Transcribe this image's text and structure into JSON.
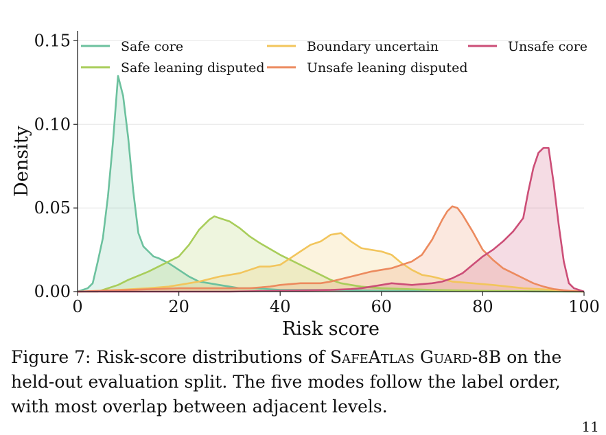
{
  "chart_data": {
    "type": "area",
    "xlabel": "Risk score",
    "ylabel": "Density",
    "xlim": [
      0,
      100
    ],
    "ylim": [
      0,
      0.16
    ],
    "xticks": [
      0,
      20,
      40,
      60,
      80,
      100
    ],
    "yticks": [
      0.0,
      0.05,
      0.1,
      0.15
    ],
    "xtick_labels": [
      "0",
      "20",
      "40",
      "60",
      "80",
      "100"
    ],
    "ytick_labels": [
      "0.00",
      "0.05",
      "0.10",
      "0.15"
    ],
    "grid": "horizontal",
    "legend_position": "top",
    "series": [
      {
        "name": "Safe core",
        "color": "#6cc19e",
        "x": [
          0,
          2,
          3,
          4,
          5,
          6,
          7,
          8,
          9,
          10,
          11,
          12,
          13,
          14,
          15,
          16,
          18,
          20,
          22,
          24,
          26,
          28,
          30,
          32,
          35,
          40,
          50,
          60,
          70,
          80,
          90,
          100
        ],
        "y": [
          0,
          0.002,
          0.005,
          0.018,
          0.032,
          0.057,
          0.09,
          0.129,
          0.117,
          0.092,
          0.06,
          0.035,
          0.027,
          0.024,
          0.021,
          0.02,
          0.017,
          0.013,
          0.009,
          0.006,
          0.005,
          0.004,
          0.003,
          0.002,
          0.002,
          0.001,
          0.001,
          0.0005,
          0.0003,
          0.0002,
          0.0001,
          0
        ]
      },
      {
        "name": "Safe leaning disputed",
        "color": "#a8cd5a",
        "x": [
          0,
          4,
          6,
          8,
          10,
          14,
          18,
          20,
          22,
          24,
          26,
          27,
          28,
          30,
          32,
          34,
          36,
          40,
          44,
          48,
          50,
          52,
          54,
          56,
          60,
          70,
          80,
          100
        ],
        "y": [
          0,
          0,
          0.002,
          0.004,
          0.007,
          0.012,
          0.018,
          0.021,
          0.028,
          0.037,
          0.043,
          0.045,
          0.044,
          0.042,
          0.038,
          0.033,
          0.029,
          0.022,
          0.016,
          0.01,
          0.007,
          0.005,
          0.004,
          0.003,
          0.002,
          0.001,
          0.0005,
          0
        ]
      },
      {
        "name": "Boundary uncertain",
        "color": "#f2c55c",
        "x": [
          0,
          8,
          14,
          18,
          20,
          24,
          28,
          32,
          34,
          36,
          38,
          40,
          42,
          44,
          46,
          48,
          50,
          52,
          54,
          56,
          58,
          60,
          62,
          64,
          66,
          68,
          70,
          74,
          78,
          82,
          88,
          94,
          100
        ],
        "y": [
          0,
          0.001,
          0.002,
          0.003,
          0.004,
          0.006,
          0.009,
          0.011,
          0.013,
          0.015,
          0.015,
          0.016,
          0.02,
          0.024,
          0.028,
          0.03,
          0.034,
          0.035,
          0.03,
          0.026,
          0.025,
          0.024,
          0.022,
          0.017,
          0.013,
          0.01,
          0.009,
          0.006,
          0.005,
          0.004,
          0.002,
          0.001,
          0
        ]
      },
      {
        "name": "Unsafe leaning disputed",
        "color": "#ec8a5e",
        "x": [
          0,
          10,
          20,
          30,
          34,
          38,
          40,
          44,
          48,
          50,
          54,
          58,
          60,
          62,
          64,
          66,
          68,
          70,
          72,
          73,
          74,
          75,
          76,
          78,
          80,
          82,
          84,
          86,
          88,
          90,
          92,
          94,
          96,
          98,
          100
        ],
        "y": [
          0,
          0.001,
          0.002,
          0.002,
          0.002,
          0.003,
          0.004,
          0.005,
          0.005,
          0.006,
          0.009,
          0.012,
          0.013,
          0.014,
          0.016,
          0.018,
          0.022,
          0.031,
          0.043,
          0.048,
          0.051,
          0.05,
          0.046,
          0.036,
          0.025,
          0.019,
          0.014,
          0.011,
          0.008,
          0.005,
          0.003,
          0.0015,
          0.0008,
          0.0003,
          0
        ]
      },
      {
        "name": "Unsafe core",
        "color": "#cc4e77",
        "x": [
          0,
          10,
          30,
          40,
          50,
          54,
          56,
          58,
          60,
          62,
          66,
          70,
          72,
          74,
          76,
          78,
          80,
          82,
          84,
          86,
          88,
          89,
          90,
          91,
          92,
          93,
          94,
          95,
          96,
          97,
          98,
          100
        ],
        "y": [
          0,
          0,
          0,
          0.0005,
          0.001,
          0.0015,
          0.002,
          0.003,
          0.004,
          0.005,
          0.004,
          0.005,
          0.006,
          0.008,
          0.011,
          0.016,
          0.021,
          0.025,
          0.03,
          0.036,
          0.044,
          0.06,
          0.074,
          0.083,
          0.086,
          0.086,
          0.065,
          0.04,
          0.018,
          0.005,
          0.002,
          0
        ]
      }
    ]
  },
  "caption": {
    "prefix": "Figure 7: Risk-score distributions of ",
    "model_name": "SafeAtlas Guard",
    "model_suffix": "-8B",
    "rest": " on the held-out evaluation split. The five modes follow the label order, with most overlap between adjacent levels."
  },
  "page_number": "11"
}
